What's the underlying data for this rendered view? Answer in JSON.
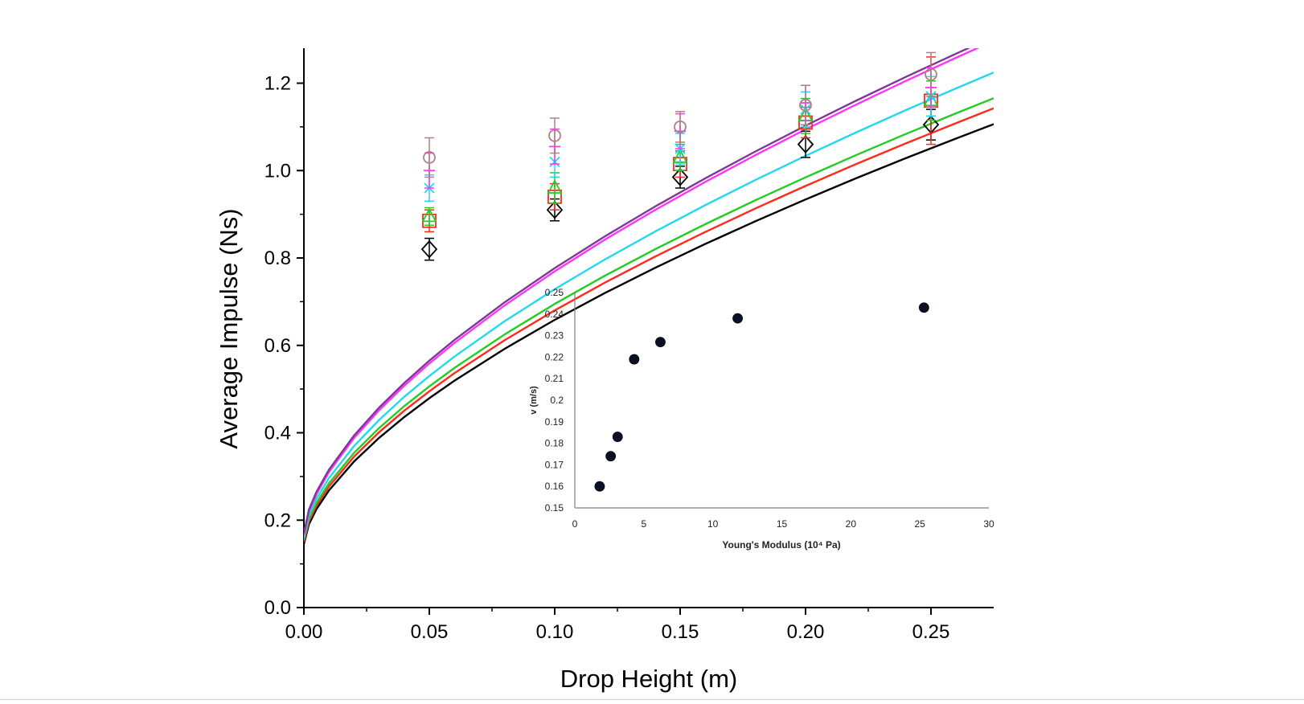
{
  "chart_data": [
    {
      "type": "line",
      "xlabel": "Drop Height (m)",
      "ylabel": "Average Impulse (Ns)",
      "xlim": [
        0.0,
        0.275
      ],
      "ylim": [
        0.0,
        1.28
      ],
      "xticks": [
        0.0,
        0.05,
        0.1,
        0.15,
        0.2,
        0.25
      ],
      "xtick_labels": [
        "0.00",
        "0.05",
        "0.10",
        "0.15",
        "0.20",
        "0.25"
      ],
      "yticks": [
        0.0,
        0.2,
        0.4,
        0.6,
        0.8,
        1.0,
        1.2
      ],
      "ytick_labels": [
        "0.0",
        "0.2",
        "0.4",
        "0.6",
        "0.8",
        "1.0",
        "1.2"
      ],
      "grid": false,
      "curve_x": [
        0.0,
        0.002,
        0.005,
        0.01,
        0.02,
        0.03,
        0.04,
        0.05,
        0.06,
        0.08,
        0.1,
        0.12,
        0.14,
        0.16,
        0.18,
        0.2,
        0.22,
        0.24,
        0.26,
        0.275
      ],
      "curves": [
        {
          "color": "#000000",
          "c": 0.145,
          "k": 2.14
        },
        {
          "color": "#ff2a1a",
          "c": 0.15,
          "k": 2.21
        },
        {
          "color": "#22cc22",
          "c": 0.155,
          "k": 2.25
        },
        {
          "color": "#22d8f0",
          "c": 0.16,
          "k": 2.37
        },
        {
          "color": "#ff33ff",
          "c": 0.165,
          "k": 2.52
        },
        {
          "color": "#7a3b8f",
          "c": 0.17,
          "k": 2.53
        }
      ],
      "point_series": [
        {
          "marker": "diamond",
          "color": "#000000",
          "x": [
            0.05,
            0.1,
            0.15,
            0.2,
            0.25
          ],
          "y": [
            0.82,
            0.91,
            0.985,
            1.06,
            1.105
          ],
          "err": [
            0.025,
            0.025,
            0.025,
            0.03,
            0.035
          ]
        },
        {
          "marker": "square",
          "color": "#ff2a1a",
          "x": [
            0.05,
            0.1,
            0.15,
            0.2,
            0.25
          ],
          "y": [
            0.885,
            0.94,
            1.015,
            1.11,
            1.16
          ],
          "err": [
            0.025,
            0.03,
            0.03,
            0.035,
            0.1
          ]
        },
        {
          "marker": "triangle",
          "color": "#22cc22",
          "x": [
            0.05,
            0.1,
            0.15,
            0.2,
            0.25
          ],
          "y": [
            0.895,
            0.96,
            1.03,
            1.125,
            1.16
          ],
          "err": [
            0.02,
            0.035,
            0.03,
            0.04,
            0.045
          ]
        },
        {
          "marker": "cross",
          "color": "#22d8f0",
          "x": [
            0.05,
            0.1,
            0.15,
            0.2,
            0.25
          ],
          "y": [
            0.96,
            1.02,
            1.05,
            1.14,
            1.17
          ],
          "err": [
            0.03,
            0.035,
            0.035,
            0.04,
            0.045
          ]
        },
        {
          "marker": "plus",
          "color": "#ff33ff",
          "x": [
            0.05,
            0.1,
            0.15,
            0.2,
            0.25
          ],
          "y": [
            1.0,
            1.055,
            1.09,
            1.155,
            1.19
          ],
          "err": [
            0.04,
            0.04,
            0.04,
            0.04,
            0.045
          ]
        },
        {
          "marker": "circle",
          "color": "#b08080",
          "x": [
            0.05,
            0.1,
            0.15,
            0.2,
            0.25
          ],
          "y": [
            1.03,
            1.08,
            1.1,
            1.15,
            1.22
          ],
          "err": [
            0.045,
            0.04,
            0.035,
            0.045,
            0.05
          ]
        }
      ]
    },
    {
      "type": "scatter",
      "xlabel": "Young's Modulus (10⁴ Pa)",
      "ylabel": "v (m/s)",
      "xlim": [
        0,
        30
      ],
      "ylim": [
        0.15,
        0.25
      ],
      "xticks": [
        0,
        5,
        10,
        15,
        20,
        25,
        30
      ],
      "xtick_labels": [
        "0",
        "5",
        "10",
        "15",
        "20",
        "25",
        "30"
      ],
      "yticks": [
        0.15,
        0.16,
        0.17,
        0.18,
        0.19,
        0.2,
        0.21,
        0.22,
        0.23,
        0.24,
        0.25
      ],
      "ytick_labels": [
        "0.15",
        "0.16",
        "0.17",
        "0.18",
        "0.19",
        "0.2",
        "0.21",
        "0.22",
        "0.23",
        "0.24",
        "0.25"
      ],
      "grid": false,
      "color": "#0a1026",
      "x": [
        1.8,
        2.6,
        3.1,
        4.3,
        6.2,
        11.8,
        25.3
      ],
      "y": [
        0.16,
        0.174,
        0.183,
        0.219,
        0.227,
        0.238,
        0.243
      ]
    }
  ]
}
